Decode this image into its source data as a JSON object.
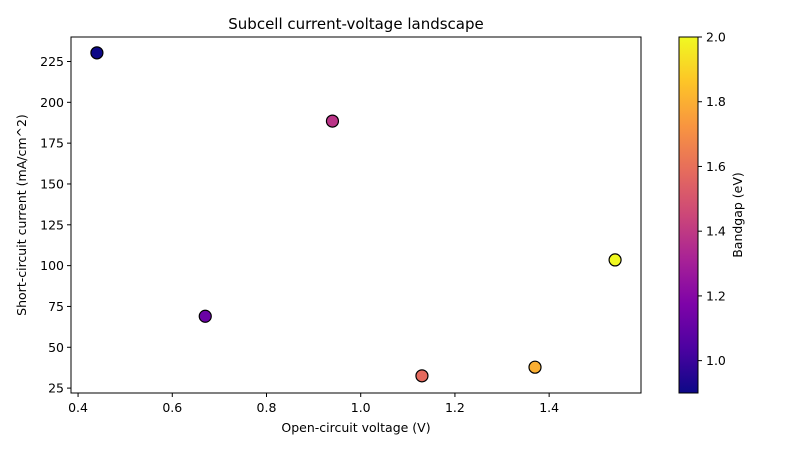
{
  "chart_data": {
    "type": "scatter",
    "title": "Subcell current-voltage landscape",
    "xlabel": "Open-circuit voltage (V)",
    "ylabel": "Short-circuit current (mA/cm^2)",
    "xlim": [
      0.385,
      1.595
    ],
    "ylim": [
      22,
      240
    ],
    "xticks": [
      0.4,
      0.6,
      0.8,
      1.0,
      1.2,
      1.4
    ],
    "xtick_labels": [
      "0.4",
      "0.6",
      "0.8",
      "1.0",
      "1.2",
      "1.4"
    ],
    "yticks": [
      25,
      50,
      75,
      100,
      125,
      150,
      175,
      200,
      225
    ],
    "ytick_labels": [
      "25",
      "50",
      "75",
      "100",
      "125",
      "150",
      "175",
      "200",
      "225"
    ],
    "grid": false,
    "points": [
      {
        "x": 0.44,
        "y": 230.3,
        "bandgap": 0.9
      },
      {
        "x": 0.67,
        "y": 69.0,
        "bandgap": 1.12
      },
      {
        "x": 0.94,
        "y": 188.5,
        "bandgap": 1.38
      },
      {
        "x": 1.13,
        "y": 32.5,
        "bandgap": 1.58
      },
      {
        "x": 1.37,
        "y": 37.8,
        "bandgap": 1.8
      },
      {
        "x": 1.54,
        "y": 103.5,
        "bandgap": 2.0
      }
    ],
    "colorbar": {
      "label": "Bandgap (eV)",
      "colormap": "plasma",
      "range": [
        0.9,
        2.0
      ],
      "ticks": [
        1.0,
        1.2,
        1.4,
        1.6,
        1.8,
        2.0
      ],
      "tick_labels": [
        "1.0",
        "1.2",
        "1.4",
        "1.6",
        "1.8",
        "2.0"
      ]
    },
    "marker_edge_color": "#000000"
  }
}
